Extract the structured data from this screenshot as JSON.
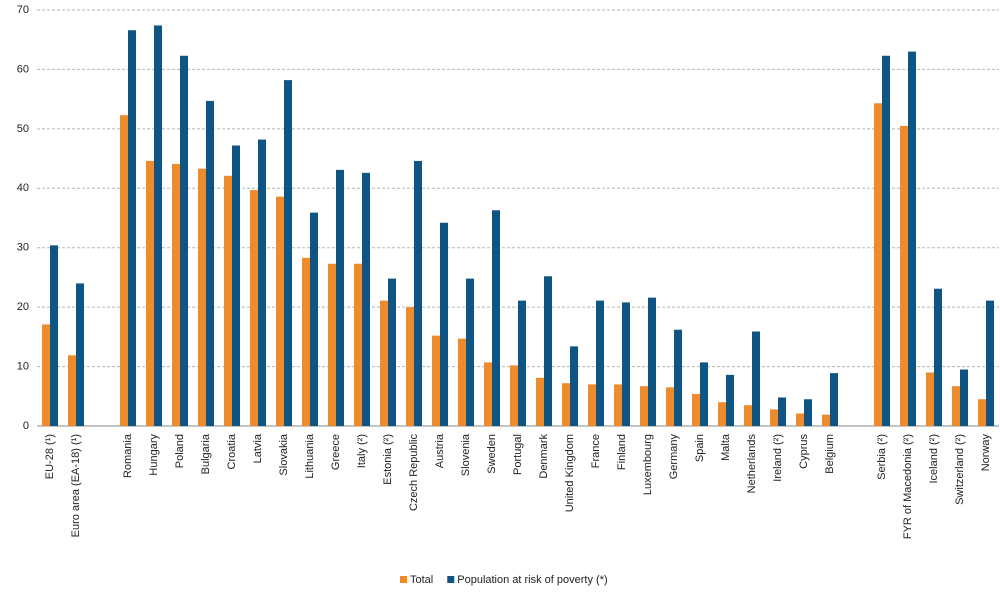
{
  "chart_data": {
    "type": "bar",
    "categories": [
      "EU-28 (¹)",
      "Euro area (EA-18) (¹)",
      null,
      "Romania",
      "Hungary",
      "Poland",
      "Bulgaria",
      "Croatia",
      "Latvia",
      "Slovakia",
      "Lithuania",
      "Greece",
      "Italy (²)",
      "Estonia (²)",
      "Czech Republic",
      "Austria",
      "Slovenia",
      "Sweden",
      "Portugal",
      "Denmark",
      "United Kingdom",
      "France",
      "Finland",
      "Luxembourg",
      "Germany",
      "Spain",
      "Malta",
      "Netherlands",
      "Ireland (²)",
      "Cyprus",
      "Belgium",
      null,
      "Serbia (²)",
      "FYR of Macedonia (²)",
      "Iceland (²)",
      "Switzerland (²)",
      "Norway"
    ],
    "series": [
      {
        "name": "Total",
        "color": "#ee8b2c",
        "values": [
          17.1,
          11.9,
          null,
          52.3,
          44.6,
          44.1,
          43.3,
          42.1,
          39.7,
          38.6,
          28.3,
          27.3,
          27.3,
          21.1,
          20.0,
          15.2,
          14.7,
          10.7,
          10.2,
          8.1,
          7.2,
          7.0,
          7.0,
          6.7,
          6.5,
          5.4,
          4.0,
          3.5,
          2.8,
          2.1,
          1.9,
          null,
          54.3,
          50.5,
          9.0,
          6.7,
          4.5
        ]
      },
      {
        "name": "Population at risk of poverty (*)",
        "color": "#0e5584",
        "values": [
          30.4,
          24.0,
          null,
          66.6,
          67.4,
          62.3,
          54.7,
          47.2,
          48.2,
          58.2,
          35.9,
          43.1,
          42.6,
          24.8,
          44.6,
          34.2,
          24.8,
          36.3,
          21.1,
          25.2,
          13.4,
          21.1,
          20.8,
          21.6,
          16.2,
          10.7,
          8.6,
          15.9,
          4.8,
          4.5,
          8.9,
          null,
          62.3,
          63.0,
          23.1,
          9.5,
          21.1
        ]
      }
    ],
    "ylim": [
      0,
      70
    ],
    "yticks": [
      0,
      10,
      20,
      30,
      40,
      50,
      60,
      70
    ],
    "grid": true,
    "legend": "bottom"
  }
}
